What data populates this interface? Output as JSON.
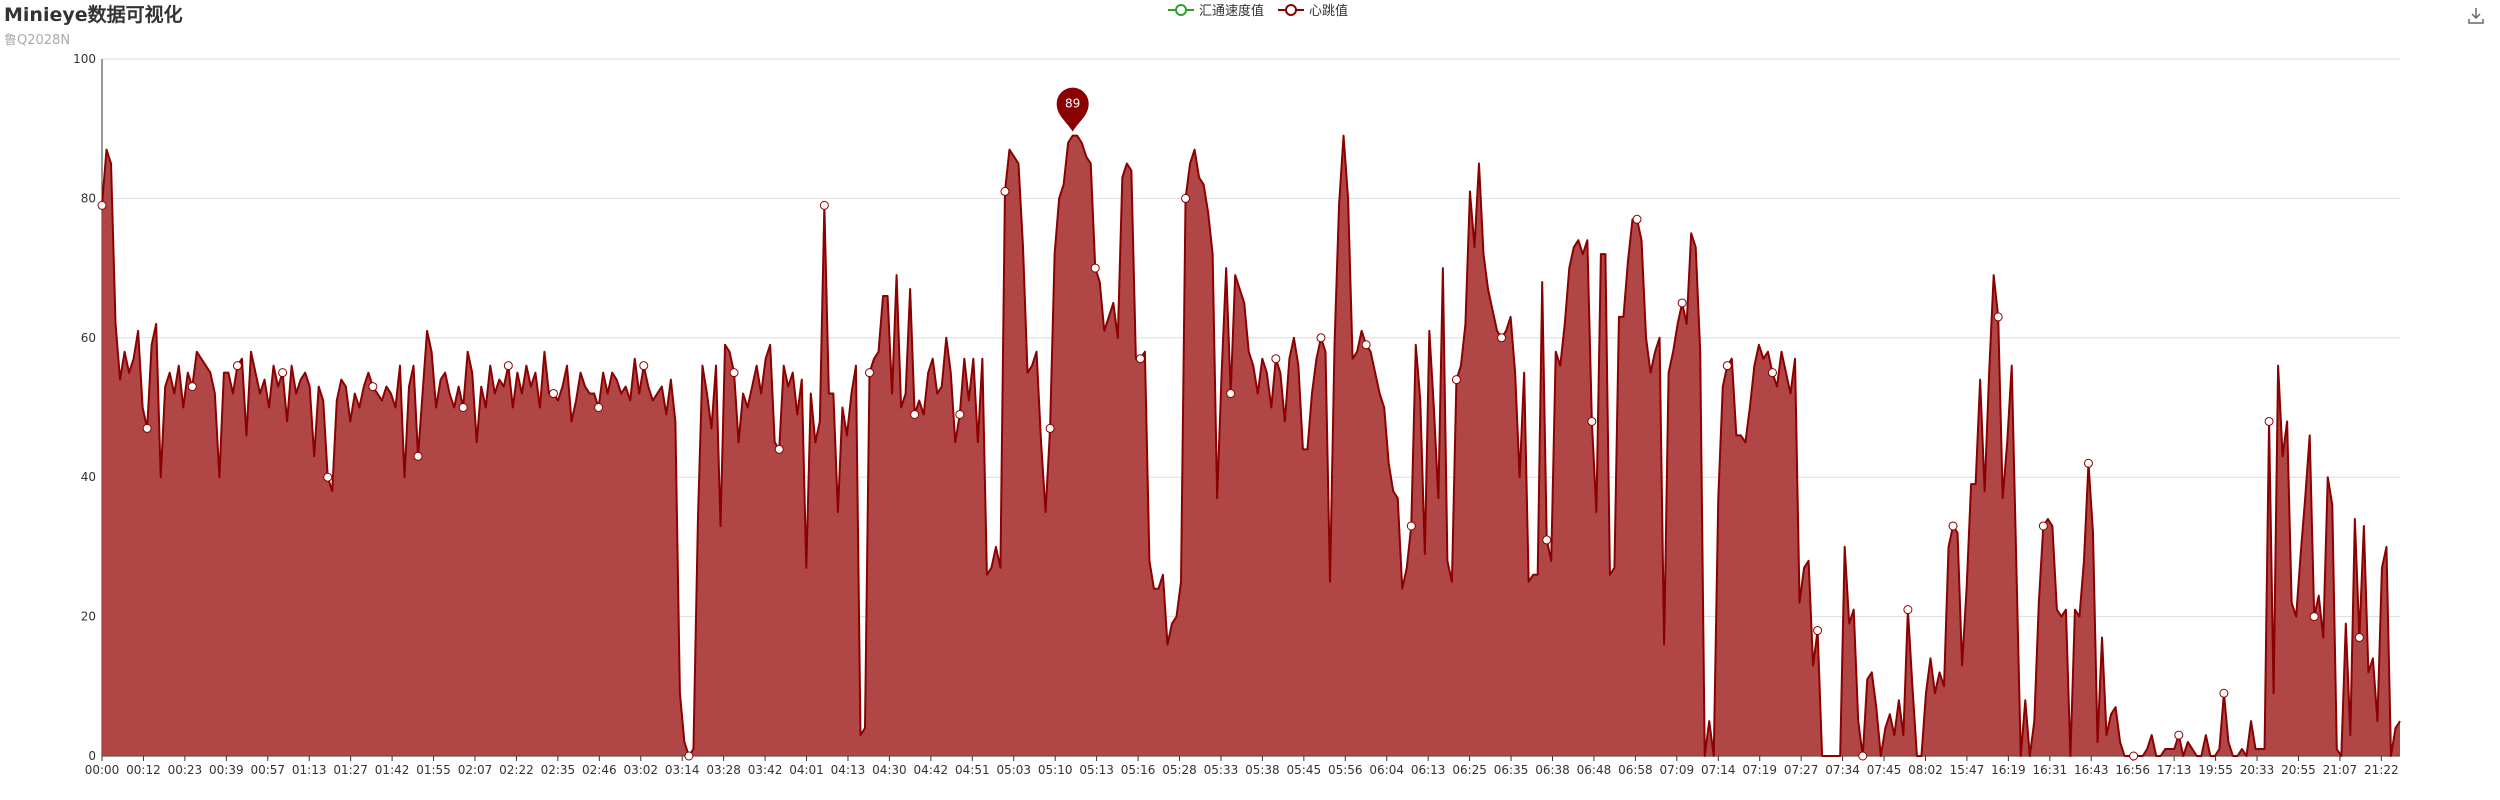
{
  "title": "Minieye数据可视化",
  "subtitle": "鲁Q2028N",
  "toolbox": {
    "icon": "download-icon"
  },
  "colors": {
    "series1": "#2ca02c",
    "series2": "#8b0000",
    "area": "#a83232",
    "grid": "#dddddd",
    "axis": "#333333"
  },
  "chart_data": {
    "type": "area",
    "legend": [
      "汇通速度值",
      "心跳值"
    ],
    "legend_position": "top-center",
    "ylim": [
      0,
      100
    ],
    "yticks": [
      0,
      20,
      40,
      60,
      80,
      100
    ],
    "grid": true,
    "xticks": [
      "00:00",
      "00:12",
      "00:23",
      "00:39",
      "00:57",
      "01:13",
      "01:27",
      "01:42",
      "01:55",
      "02:07",
      "02:22",
      "02:35",
      "02:46",
      "03:02",
      "03:14",
      "03:28",
      "03:42",
      "04:01",
      "04:13",
      "04:30",
      "04:42",
      "04:51",
      "05:03",
      "05:10",
      "05:13",
      "05:16",
      "05:28",
      "05:33",
      "05:38",
      "05:45",
      "05:56",
      "06:04",
      "06:13",
      "06:25",
      "06:35",
      "06:38",
      "06:48",
      "06:58",
      "07:09",
      "07:14",
      "07:19",
      "07:27",
      "07:34",
      "07:45",
      "08:02",
      "15:47",
      "16:19",
      "16:31",
      "16:43",
      "16:56",
      "17:13",
      "19:55",
      "20:33",
      "20:55",
      "21:07",
      "21:22"
    ],
    "series": [
      {
        "name": "汇通速度值",
        "values": []
      },
      {
        "name": "心跳值",
        "max_label": 89,
        "values": [
          79,
          87,
          85,
          62,
          54,
          58,
          55,
          57,
          61,
          50,
          47,
          59,
          62,
          40,
          53,
          55,
          52,
          56,
          50,
          55,
          53,
          58,
          57,
          56,
          55,
          52,
          40,
          55,
          55,
          52,
          56,
          57,
          46,
          58,
          55,
          52,
          54,
          50,
          56,
          53,
          55,
          48,
          56,
          52,
          54,
          55,
          53,
          43,
          53,
          51,
          40,
          38,
          51,
          54,
          53,
          48,
          52,
          50,
          53,
          55,
          53,
          52,
          51,
          53,
          52,
          50,
          56,
          40,
          53,
          56,
          43,
          52,
          61,
          58,
          50,
          54,
          55,
          52,
          50,
          53,
          50,
          58,
          55,
          45,
          53,
          50,
          56,
          52,
          54,
          53,
          56,
          50,
          55,
          52,
          56,
          53,
          55,
          50,
          58,
          52,
          52,
          51,
          53,
          56,
          48,
          51,
          55,
          53,
          52,
          52,
          50,
          55,
          52,
          55,
          54,
          52,
          53,
          51,
          57,
          52,
          56,
          53,
          51,
          52,
          53,
          49,
          54,
          48,
          9,
          2,
          0,
          1,
          34,
          56,
          52,
          47,
          56,
          33,
          59,
          58,
          55,
          45,
          52,
          50,
          53,
          56,
          52,
          57,
          59,
          45,
          44,
          56,
          53,
          55,
          49,
          54,
          27,
          52,
          45,
          48,
          79,
          52,
          52,
          35,
          50,
          46,
          52,
          56,
          3,
          4,
          55,
          57,
          58,
          66,
          66,
          52,
          69,
          50,
          52,
          67,
          49,
          51,
          49,
          55,
          57,
          52,
          53,
          60,
          55,
          45,
          49,
          57,
          51,
          57,
          45,
          57,
          26,
          27,
          30,
          27,
          81,
          87,
          86,
          85,
          73,
          55,
          56,
          58,
          45,
          35,
          47,
          72,
          80,
          82,
          88,
          89,
          89,
          88,
          86,
          85,
          70,
          68,
          61,
          63,
          65,
          60,
          83,
          85,
          84,
          57,
          57,
          58,
          28,
          24,
          24,
          26,
          16,
          19,
          20,
          25,
          80,
          85,
          87,
          83,
          82,
          78,
          72,
          37,
          55,
          70,
          52,
          69,
          67,
          65,
          58,
          56,
          52,
          57,
          55,
          50,
          57,
          55,
          48,
          57,
          60,
          56,
          44,
          44,
          52,
          57,
          60,
          58,
          25,
          59,
          79,
          89,
          80,
          57,
          58,
          61,
          59,
          58,
          55,
          52,
          50,
          42,
          38,
          37,
          24,
          27,
          33,
          59,
          51,
          29,
          61,
          50,
          37,
          70,
          28,
          25,
          54,
          56,
          62,
          81,
          73,
          85,
          72,
          67,
          64,
          61,
          60,
          61,
          63,
          55,
          40,
          55,
          25,
          26,
          26,
          68,
          31,
          28,
          58,
          56,
          62,
          70,
          73,
          74,
          72,
          74,
          48,
          35,
          72,
          72,
          26,
          27,
          63,
          63,
          71,
          77,
          77,
          74,
          60,
          55,
          58,
          60,
          16,
          55,
          58,
          62,
          65,
          62,
          75,
          73,
          58,
          0,
          5,
          0,
          37,
          53,
          56,
          57,
          46,
          46,
          45,
          50,
          56,
          59,
          57,
          58,
          55,
          53,
          58,
          55,
          52,
          57,
          22,
          27,
          28,
          13,
          18,
          0,
          0,
          0,
          0,
          0,
          30,
          19,
          21,
          5,
          0,
          11,
          12,
          7,
          0,
          4,
          6,
          3,
          8,
          3,
          21,
          10,
          0,
          0,
          9,
          14,
          9,
          12,
          10,
          30,
          33,
          32,
          13,
          24,
          39,
          39,
          54,
          38,
          55,
          69,
          63,
          37,
          45,
          56,
          28,
          0,
          8,
          0,
          5,
          22,
          33,
          34,
          33,
          21,
          20,
          21,
          0,
          21,
          20,
          28,
          42,
          32,
          2,
          17,
          3,
          6,
          7,
          2,
          0,
          0,
          0,
          0,
          0,
          1,
          3,
          0,
          0,
          1,
          1,
          1,
          3,
          0,
          2,
          1,
          0,
          0,
          3,
          0,
          0,
          1,
          9,
          2,
          0,
          0,
          1,
          0,
          5,
          1,
          1,
          1,
          48,
          9,
          56,
          43,
          48,
          22,
          20,
          29,
          37,
          46,
          20,
          23,
          17,
          40,
          36,
          1,
          0,
          19,
          3,
          34,
          17,
          33,
          12,
          14,
          5,
          27,
          30,
          0,
          4,
          5
        ]
      }
    ]
  }
}
